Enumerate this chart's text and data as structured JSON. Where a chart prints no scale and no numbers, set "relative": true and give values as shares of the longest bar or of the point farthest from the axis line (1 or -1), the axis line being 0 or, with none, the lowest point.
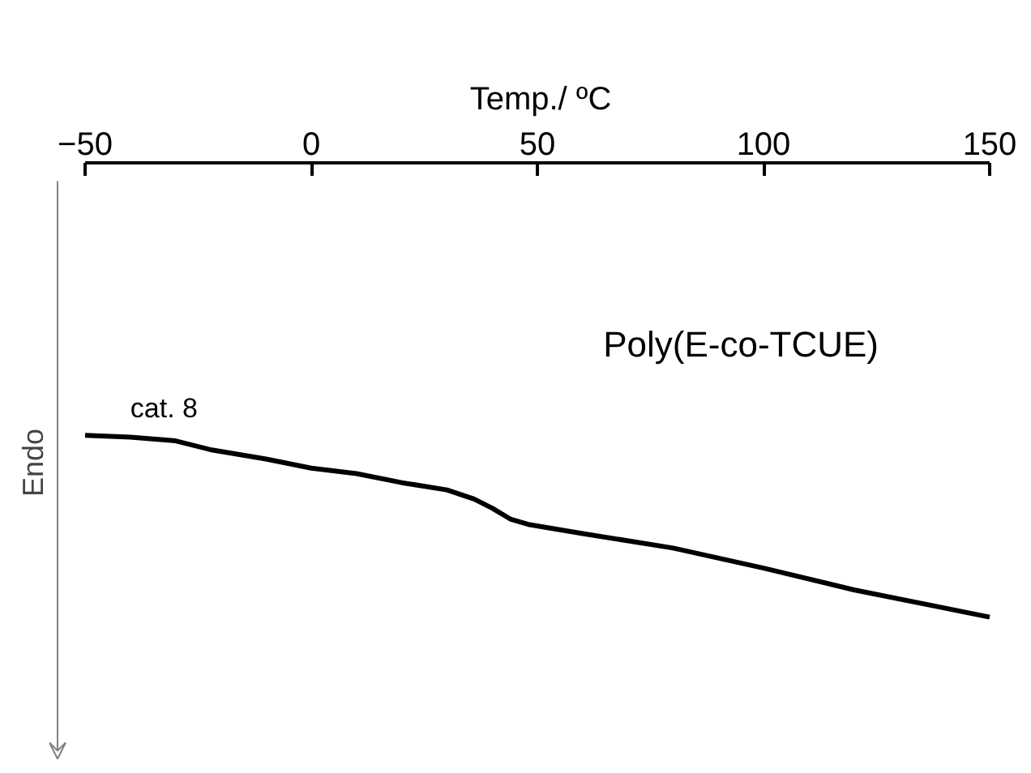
{
  "chart_data": {
    "type": "line",
    "relative": true,
    "xlabel": "Temp./ ºC",
    "ylabel": "Endo",
    "xlim": [
      -50,
      150
    ],
    "xticks": [
      -50,
      0,
      50,
      100,
      150
    ],
    "grid": false,
    "marker": "none",
    "line_style": "solid",
    "tick_labels": "x",
    "annotations": [
      "Poly(E-co-TCUE)",
      "cat. 8"
    ],
    "series": [
      {
        "color": "#000000",
        "x": [
          -50,
          -40,
          -30,
          -22,
          -10,
          0,
          10,
          20,
          30,
          36,
          40,
          44,
          48,
          60,
          80,
          100,
          120,
          140,
          150
        ],
        "values": [
          1.0,
          0.99,
          0.97,
          0.92,
          0.87,
          0.82,
          0.79,
          0.74,
          0.7,
          0.65,
          0.6,
          0.54,
          0.51,
          0.46,
          0.38,
          0.27,
          0.15,
          0.05,
          0.0
        ]
      }
    ]
  }
}
